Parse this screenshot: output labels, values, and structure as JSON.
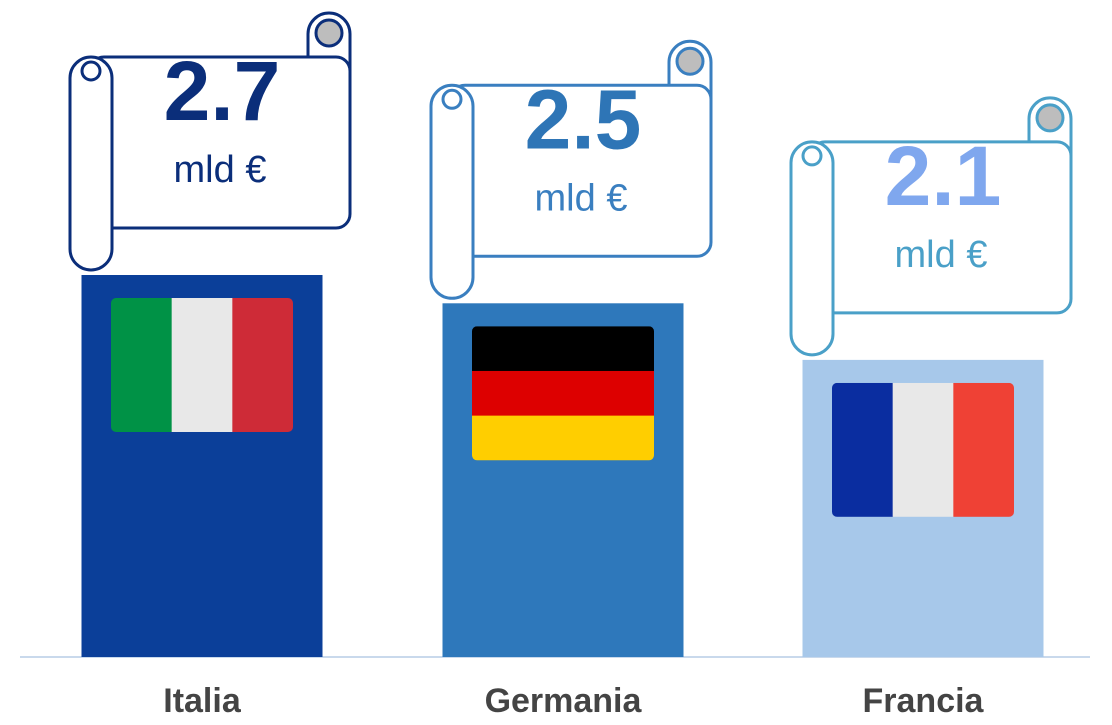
{
  "chart_data": {
    "type": "bar",
    "categories": [
      "Italia",
      "Germania",
      "Francia"
    ],
    "values": [
      2.7,
      2.5,
      2.1
    ],
    "unit": "mld €",
    "colors": [
      "#0b3f99",
      "#2e78bb",
      "#a7c8ea"
    ],
    "label_colors": [
      "#0b2e7a",
      "#2e75b6",
      "#7fa7ee"
    ],
    "banner_colors": [
      "#0b2e7a",
      "#3a7fc0",
      "#4aa0c8"
    ]
  }
}
